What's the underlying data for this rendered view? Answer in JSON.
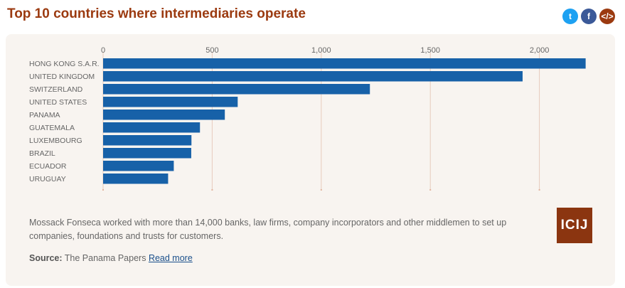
{
  "header": {
    "title": "Top 10 countries where intermediaries operate"
  },
  "share": [
    {
      "name": "twitter-icon",
      "glyph": "t",
      "color": "#1da1f2"
    },
    {
      "name": "facebook-icon",
      "glyph": "f",
      "color": "#3b5998"
    },
    {
      "name": "embed-code-icon",
      "glyph": "</>",
      "color": "#9b3a10"
    }
  ],
  "chart_data": {
    "type": "bar",
    "orientation": "horizontal",
    "categories": [
      "HONG KONG S.A.R.",
      "UNITED KINGDOM",
      "SWITZERLAND",
      "UNITED STATES",
      "PANAMA",
      "GUATEMALA",
      "LUXEMBOURG",
      "BRAZIL",
      "ECUADOR",
      "URUGUAY"
    ],
    "values": [
      2212,
      1923,
      1223,
      617,
      558,
      444,
      405,
      404,
      324,
      298
    ],
    "xticks": [
      0,
      500,
      1000,
      1500,
      2000
    ],
    "xtick_labels": [
      "0",
      "500",
      "1,000",
      "1,500",
      "2,000"
    ],
    "xlim": [
      0,
      2300
    ],
    "grid": true,
    "bar_color": "#1761a8"
  },
  "footer": {
    "caption": "Mossack Fonseca worked with more than 14,000 banks, law firms, company incorporators and other middlemen to set up companies, foundations and trusts for customers.",
    "source_label": "Source:",
    "source_text": "The Panama Papers",
    "read_more": "Read more",
    "logo_text": "ICIJ"
  }
}
